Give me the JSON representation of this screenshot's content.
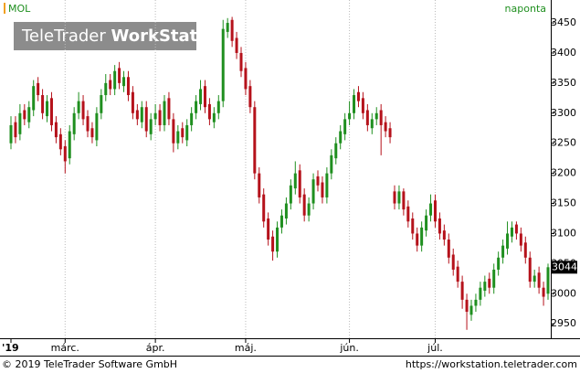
{
  "chart_data": {
    "type": "candlestick",
    "symbol": "MOL",
    "interval": "naponta",
    "watermark": [
      "TeleTrader",
      "WorkStation"
    ],
    "footer_left": "© 2019 TeleTrader Software GmbH",
    "footer_right": "https://workstation.teletrader.com",
    "last_price": 3044,
    "up_color": "#1f8f1f",
    "down_color": "#b5121b",
    "grid": "x",
    "ylim": [
      2926,
      3485
    ],
    "yticks": [
      2950,
      3000,
      3050,
      3100,
      3150,
      3200,
      3250,
      3300,
      3350,
      3400,
      3450
    ],
    "categories": [
      "'19",
      null,
      null,
      null,
      null,
      null,
      null,
      null,
      null,
      null,
      null,
      null,
      "márc.",
      null,
      null,
      null,
      null,
      null,
      null,
      null,
      null,
      null,
      null,
      null,
      null,
      null,
      null,
      null,
      null,
      null,
      null,
      null,
      "ápr.",
      null,
      null,
      null,
      null,
      null,
      null,
      null,
      null,
      null,
      null,
      null,
      null,
      null,
      null,
      null,
      null,
      null,
      null,
      null,
      "máj.",
      null,
      null,
      null,
      null,
      null,
      null,
      null,
      null,
      null,
      null,
      null,
      null,
      null,
      null,
      null,
      null,
      null,
      null,
      null,
      null,
      null,
      null,
      "jún.",
      null,
      null,
      null,
      null,
      null,
      null,
      null,
      null,
      null,
      null,
      null,
      null,
      null,
      null,
      null,
      null,
      null,
      null,
      "júl.",
      null,
      null,
      null,
      null,
      null,
      null,
      null,
      null,
      null,
      null,
      null,
      null,
      null,
      null,
      null,
      null,
      null,
      null,
      null,
      null,
      null,
      null,
      null,
      null,
      null
    ],
    "open": [
      3250,
      3285,
      3265,
      3305,
      3285,
      3305,
      3350,
      3330,
      3295,
      3325,
      3285,
      3265,
      3245,
      3225,
      3265,
      3300,
      3320,
      3295,
      3275,
      3255,
      3300,
      3330,
      3355,
      3340,
      3375,
      3345,
      3360,
      3335,
      3305,
      3285,
      3310,
      3265,
      3290,
      3305,
      3280,
      3325,
      3290,
      3250,
      3275,
      3255,
      3280,
      3300,
      3315,
      3345,
      3315,
      3285,
      3300,
      3320,
      3435,
      3455,
      3425,
      3400,
      3375,
      3345,
      3310,
      3200,
      3165,
      3125,
      3095,
      3070,
      3110,
      3125,
      3150,
      3175,
      3205,
      3165,
      3130,
      3150,
      3195,
      3185,
      3160,
      3200,
      3225,
      3250,
      3265,
      3290,
      3300,
      3335,
      3325,
      3305,
      3275,
      3290,
      3305,
      3285,
      3275,
      3170,
      3150,
      3170,
      3145,
      3125,
      3100,
      3080,
      3105,
      3130,
      3155,
      3125,
      3105,
      3090,
      3065,
      3045,
      3020,
      2990,
      2965,
      2980,
      2990,
      3005,
      3025,
      3010,
      3040,
      3060,
      3075,
      3095,
      3115,
      3100,
      3085,
      3060,
      3020,
      3035,
      3010,
      3000
    ],
    "high": [
      3295,
      3295,
      3315,
      3315,
      3320,
      3355,
      3360,
      3340,
      3330,
      3335,
      3295,
      3275,
      3255,
      3280,
      3310,
      3335,
      3330,
      3305,
      3285,
      3310,
      3340,
      3365,
      3365,
      3380,
      3385,
      3370,
      3370,
      3345,
      3315,
      3320,
      3320,
      3300,
      3315,
      3315,
      3330,
      3335,
      3300,
      3280,
      3285,
      3290,
      3310,
      3330,
      3355,
      3355,
      3325,
      3310,
      3330,
      3455,
      3458,
      3460,
      3435,
      3410,
      3385,
      3355,
      3320,
      3210,
      3175,
      3135,
      3105,
      3120,
      3140,
      3160,
      3190,
      3220,
      3215,
      3175,
      3160,
      3200,
      3205,
      3195,
      3210,
      3240,
      3260,
      3280,
      3300,
      3320,
      3340,
      3345,
      3335,
      3315,
      3300,
      3310,
      3315,
      3295,
      3285,
      3180,
      3180,
      3175,
      3155,
      3135,
      3110,
      3120,
      3140,
      3165,
      3165,
      3135,
      3115,
      3100,
      3075,
      3055,
      3030,
      3000,
      2990,
      3000,
      3020,
      3030,
      3035,
      3050,
      3070,
      3090,
      3120,
      3120,
      3120,
      3110,
      3095,
      3070,
      3040,
      3045,
      3020,
      3050
    ],
    "low": [
      3240,
      3250,
      3255,
      3280,
      3275,
      3295,
      3320,
      3290,
      3285,
      3270,
      3250,
      3230,
      3200,
      3215,
      3255,
      3290,
      3280,
      3260,
      3250,
      3245,
      3290,
      3320,
      3330,
      3330,
      3340,
      3335,
      3320,
      3290,
      3280,
      3275,
      3260,
      3255,
      3280,
      3270,
      3270,
      3280,
      3235,
      3240,
      3250,
      3245,
      3270,
      3290,
      3305,
      3300,
      3280,
      3275,
      3290,
      3310,
      3425,
      3410,
      3390,
      3360,
      3330,
      3300,
      3190,
      3150,
      3110,
      3080,
      3055,
      3060,
      3100,
      3115,
      3140,
      3165,
      3150,
      3120,
      3120,
      3140,
      3170,
      3150,
      3150,
      3190,
      3215,
      3240,
      3255,
      3280,
      3290,
      3310,
      3290,
      3270,
      3265,
      3280,
      3230,
      3260,
      3250,
      3140,
      3140,
      3130,
      3110,
      3090,
      3070,
      3070,
      3095,
      3120,
      3110,
      3090,
      3080,
      3050,
      3030,
      3010,
      2975,
      2940,
      2955,
      2970,
      2980,
      2995,
      3000,
      3000,
      3030,
      3050,
      3065,
      3085,
      3090,
      3070,
      3050,
      3010,
      3010,
      3000,
      2980,
      2990
    ],
    "close": [
      3280,
      3260,
      3300,
      3290,
      3310,
      3345,
      3330,
      3300,
      3320,
      3280,
      3260,
      3240,
      3220,
      3270,
      3300,
      3320,
      3290,
      3270,
      3260,
      3300,
      3330,
      3350,
      3340,
      3370,
      3350,
      3360,
      3330,
      3300,
      3290,
      3310,
      3270,
      3290,
      3300,
      3280,
      3320,
      3290,
      3250,
      3270,
      3260,
      3280,
      3300,
      3320,
      3340,
      3310,
      3290,
      3300,
      3320,
      3440,
      3450,
      3420,
      3400,
      3370,
      3340,
      3310,
      3200,
      3160,
      3120,
      3090,
      3070,
      3110,
      3130,
      3150,
      3180,
      3200,
      3160,
      3130,
      3150,
      3190,
      3180,
      3160,
      3200,
      3230,
      3250,
      3270,
      3290,
      3300,
      3330,
      3320,
      3300,
      3280,
      3290,
      3300,
      3280,
      3270,
      3260,
      3150,
      3170,
      3140,
      3120,
      3100,
      3080,
      3110,
      3130,
      3150,
      3120,
      3100,
      3090,
      3060,
      3040,
      3020,
      2990,
      2970,
      2980,
      2990,
      3010,
      3020,
      3010,
      3040,
      3060,
      3080,
      3100,
      3110,
      3100,
      3080,
      3060,
      3020,
      3030,
      3010,
      2995,
      3044
    ]
  }
}
